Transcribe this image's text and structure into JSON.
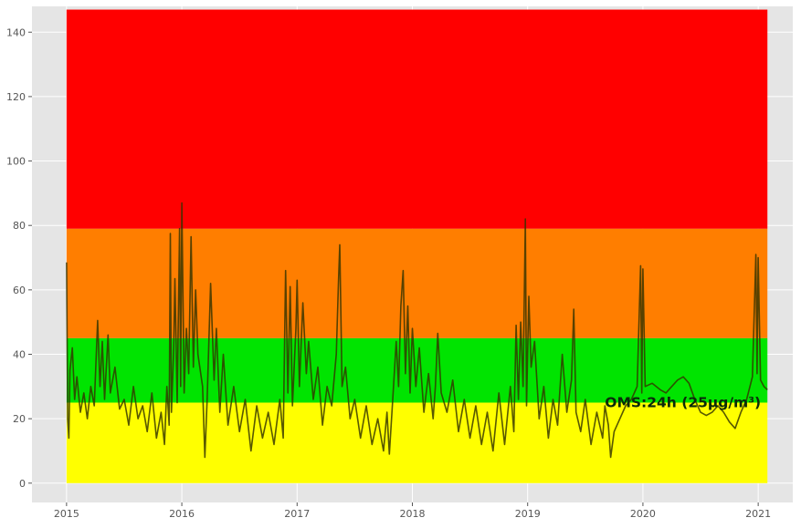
{
  "chart_data": {
    "type": "line",
    "title": "",
    "xlabel": "",
    "ylabel": "",
    "xlim": [
      2014.7,
      2021.3
    ],
    "ylim": [
      -6,
      148
    ],
    "grid": true,
    "x_ticks": [
      "2015",
      "2016",
      "2017",
      "2018",
      "2019",
      "2020",
      "2021"
    ],
    "y_ticks": [
      "0",
      "20",
      "40",
      "60",
      "80",
      "100",
      "120",
      "140"
    ],
    "x_tick_values": [
      2015,
      2016,
      2017,
      2018,
      2019,
      2020,
      2021
    ],
    "y_tick_values": [
      0,
      20,
      40,
      60,
      80,
      100,
      120,
      140
    ],
    "bands": [
      {
        "y0": 0,
        "y1": 25,
        "color": "#ffff00"
      },
      {
        "y0": 25,
        "y1": 45,
        "color": "#00e400"
      },
      {
        "y0": 45,
        "y1": 79,
        "color": "#ff7e00"
      },
      {
        "y0": 79,
        "y1": 147,
        "color": "#ff0000"
      }
    ],
    "band_x_range": [
      2015.0,
      2021.08
    ],
    "annotation": {
      "text": "OMS:24h (25µg/m³)",
      "x": 2019.67,
      "y": 25
    },
    "series": [
      {
        "color": "#333300",
        "points": [
          [
            2015.0,
            68.5
          ],
          [
            2015.01,
            20
          ],
          [
            2015.02,
            14
          ],
          [
            2015.03,
            35
          ],
          [
            2015.05,
            42
          ],
          [
            2015.07,
            26
          ],
          [
            2015.09,
            33
          ],
          [
            2015.12,
            22
          ],
          [
            2015.15,
            28
          ],
          [
            2015.18,
            20
          ],
          [
            2015.21,
            30
          ],
          [
            2015.24,
            24
          ],
          [
            2015.26,
            42
          ],
          [
            2015.27,
            50.5
          ],
          [
            2015.29,
            30
          ],
          [
            2015.31,
            44
          ],
          [
            2015.33,
            26
          ],
          [
            2015.36,
            46
          ],
          [
            2015.38,
            28
          ],
          [
            2015.42,
            36
          ],
          [
            2015.46,
            23
          ],
          [
            2015.5,
            26
          ],
          [
            2015.54,
            18
          ],
          [
            2015.58,
            30
          ],
          [
            2015.62,
            20
          ],
          [
            2015.66,
            24
          ],
          [
            2015.7,
            16
          ],
          [
            2015.74,
            28
          ],
          [
            2015.78,
            14
          ],
          [
            2015.82,
            22
          ],
          [
            2015.85,
            12
          ],
          [
            2015.87,
            30
          ],
          [
            2015.89,
            18
          ],
          [
            2015.9,
            77.5
          ],
          [
            2015.91,
            22
          ],
          [
            2015.93,
            42
          ],
          [
            2015.94,
            63.5
          ],
          [
            2015.96,
            25
          ],
          [
            2015.98,
            79
          ],
          [
            2015.99,
            30
          ],
          [
            2016.0,
            87
          ],
          [
            2016.02,
            28
          ],
          [
            2016.04,
            48
          ],
          [
            2016.06,
            34
          ],
          [
            2016.08,
            76.5
          ],
          [
            2016.1,
            36
          ],
          [
            2016.12,
            60
          ],
          [
            2016.14,
            40
          ],
          [
            2016.18,
            30
          ],
          [
            2016.2,
            8
          ],
          [
            2016.22,
            26
          ],
          [
            2016.25,
            62
          ],
          [
            2016.28,
            32
          ],
          [
            2016.3,
            48
          ],
          [
            2016.33,
            22
          ],
          [
            2016.36,
            40
          ],
          [
            2016.4,
            18
          ],
          [
            2016.45,
            30
          ],
          [
            2016.5,
            16
          ],
          [
            2016.55,
            26
          ],
          [
            2016.6,
            10
          ],
          [
            2016.65,
            24
          ],
          [
            2016.7,
            14
          ],
          [
            2016.75,
            22
          ],
          [
            2016.8,
            12
          ],
          [
            2016.85,
            26
          ],
          [
            2016.88,
            14
          ],
          [
            2016.9,
            66
          ],
          [
            2016.92,
            28
          ],
          [
            2016.94,
            61
          ],
          [
            2016.96,
            24
          ],
          [
            2016.99,
            48
          ],
          [
            2017.0,
            63
          ],
          [
            2017.02,
            30
          ],
          [
            2017.05,
            56
          ],
          [
            2017.08,
            34
          ],
          [
            2017.1,
            44
          ],
          [
            2017.14,
            26
          ],
          [
            2017.18,
            36
          ],
          [
            2017.22,
            18
          ],
          [
            2017.26,
            30
          ],
          [
            2017.3,
            24
          ],
          [
            2017.34,
            40
          ],
          [
            2017.36,
            63.5
          ],
          [
            2017.37,
            74
          ],
          [
            2017.39,
            30
          ],
          [
            2017.42,
            36
          ],
          [
            2017.46,
            20
          ],
          [
            2017.5,
            26
          ],
          [
            2017.55,
            14
          ],
          [
            2017.6,
            24
          ],
          [
            2017.65,
            12
          ],
          [
            2017.7,
            20
          ],
          [
            2017.75,
            10
          ],
          [
            2017.78,
            22
          ],
          [
            2017.8,
            9
          ],
          [
            2017.83,
            26
          ],
          [
            2017.86,
            44
          ],
          [
            2017.88,
            30
          ],
          [
            2017.9,
            55
          ],
          [
            2017.92,
            66
          ],
          [
            2017.94,
            34
          ],
          [
            2017.96,
            55
          ],
          [
            2017.98,
            28
          ],
          [
            2018.0,
            48
          ],
          [
            2018.03,
            30
          ],
          [
            2018.06,
            42
          ],
          [
            2018.1,
            22
          ],
          [
            2018.14,
            34
          ],
          [
            2018.18,
            20
          ],
          [
            2018.2,
            30
          ],
          [
            2018.22,
            46.5
          ],
          [
            2018.25,
            28
          ],
          [
            2018.3,
            22
          ],
          [
            2018.35,
            32
          ],
          [
            2018.4,
            16
          ],
          [
            2018.45,
            26
          ],
          [
            2018.5,
            14
          ],
          [
            2018.55,
            24
          ],
          [
            2018.6,
            12
          ],
          [
            2018.65,
            22
          ],
          [
            2018.7,
            10
          ],
          [
            2018.75,
            28
          ],
          [
            2018.8,
            12
          ],
          [
            2018.85,
            30
          ],
          [
            2018.88,
            16
          ],
          [
            2018.9,
            49
          ],
          [
            2018.92,
            26
          ],
          [
            2018.94,
            50
          ],
          [
            2018.96,
            30
          ],
          [
            2018.98,
            82
          ],
          [
            2018.99,
            24
          ],
          [
            2019.01,
            58
          ],
          [
            2019.03,
            36
          ],
          [
            2019.06,
            44
          ],
          [
            2019.1,
            20
          ],
          [
            2019.14,
            30
          ],
          [
            2019.18,
            14
          ],
          [
            2019.22,
            26
          ],
          [
            2019.26,
            18
          ],
          [
            2019.3,
            40
          ],
          [
            2019.34,
            22
          ],
          [
            2019.38,
            32
          ],
          [
            2019.4,
            54
          ],
          [
            2019.42,
            22
          ],
          [
            2019.46,
            16
          ],
          [
            2019.5,
            26
          ],
          [
            2019.55,
            12
          ],
          [
            2019.6,
            22
          ],
          [
            2019.65,
            14
          ],
          [
            2019.67,
            24
          ],
          [
            2019.7,
            18
          ],
          [
            2019.72,
            8
          ],
          [
            2019.75,
            16
          ],
          [
            2019.8,
            20
          ],
          [
            2019.85,
            24
          ],
          [
            2019.9,
            26
          ],
          [
            2019.95,
            30
          ],
          [
            2019.98,
            67.5
          ],
          [
            2019.99,
            28
          ],
          [
            2020.0,
            66.5
          ],
          [
            2020.02,
            30
          ],
          [
            2020.08,
            31
          ],
          [
            2020.15,
            29
          ],
          [
            2020.2,
            28
          ],
          [
            2020.25,
            30
          ],
          [
            2020.3,
            32
          ],
          [
            2020.35,
            33
          ],
          [
            2020.4,
            31
          ],
          [
            2020.45,
            26
          ],
          [
            2020.5,
            22
          ],
          [
            2020.55,
            21
          ],
          [
            2020.6,
            22
          ],
          [
            2020.65,
            24
          ],
          [
            2020.7,
            22
          ],
          [
            2020.75,
            19
          ],
          [
            2020.8,
            17
          ],
          [
            2020.85,
            22
          ],
          [
            2020.9,
            26
          ],
          [
            2020.95,
            33
          ],
          [
            2020.98,
            71
          ],
          [
            2020.99,
            34
          ],
          [
            2021.0,
            70
          ],
          [
            2021.02,
            32
          ],
          [
            2021.05,
            30
          ],
          [
            2021.08,
            29
          ]
        ]
      }
    ]
  }
}
